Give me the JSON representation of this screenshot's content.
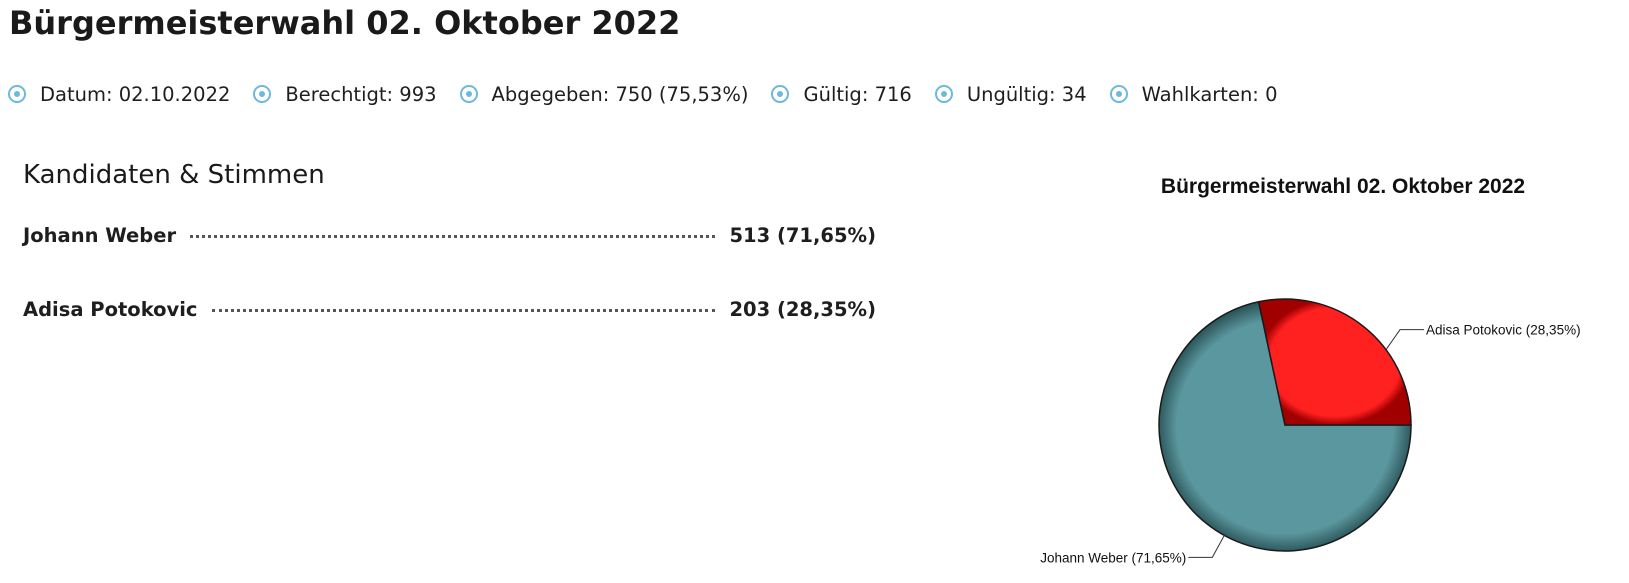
{
  "page": {
    "title": "Bürgermeisterwahl 02. Oktober 2022"
  },
  "stats": [
    {
      "label": "Datum: 02.10.2022"
    },
    {
      "label": "Berechtigt: 993"
    },
    {
      "label": "Abgegeben: 750 (75,53%)"
    },
    {
      "label": "Gültig: 716"
    },
    {
      "label": "Ungültig: 34"
    },
    {
      "label": "Wahlkarten: 0"
    }
  ],
  "stat_icon": "radio-circle-icon",
  "candidates_section": {
    "title": "Kandidaten & Stimmen",
    "rows": [
      {
        "name": "Johann Weber",
        "value": "513 (71,65%)"
      },
      {
        "name": "Adisa Potokovic",
        "value": "203 (28,35%)"
      }
    ]
  },
  "colors": {
    "accent": "#6db8dd",
    "johann_weber": "#5b979e",
    "adisa_potokovic": "#ff2020"
  },
  "chart_data": {
    "type": "pie",
    "title": "Bürgermeisterwahl 02. Oktober 2022",
    "slices": [
      {
        "name": "Johann Weber",
        "value": 513,
        "percent": 71.65,
        "label": "Johann Weber (71,65%)",
        "color": "#5b979e"
      },
      {
        "name": "Adisa Potokovic",
        "value": 203,
        "percent": 28.35,
        "label": "Adisa Potokovic (28,35%)",
        "color": "#ff2020"
      }
    ]
  }
}
